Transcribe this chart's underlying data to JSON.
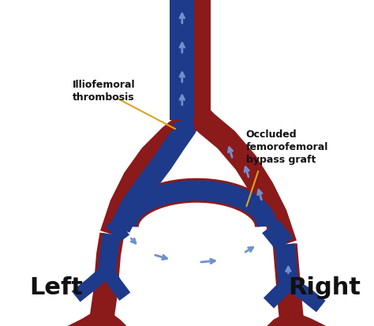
{
  "background_color": "#ffffff",
  "artery_color": "#8B1A1A",
  "artery_color2": "#A52020",
  "vein_color": "#1E3A8A",
  "vein_color2": "#2550C0",
  "arrow_color": "#7090D0",
  "label_left": "Left",
  "label_right": "Right",
  "label_thrombosis": "Illiofemoral\nthrombosis",
  "label_bypass": "Occluded\nfemorofemoral\nbypass graft",
  "annotation_color": "#DAA520",
  "text_color": "#111111",
  "figsize": [
    4.74,
    4.14
  ],
  "dpi": 100
}
